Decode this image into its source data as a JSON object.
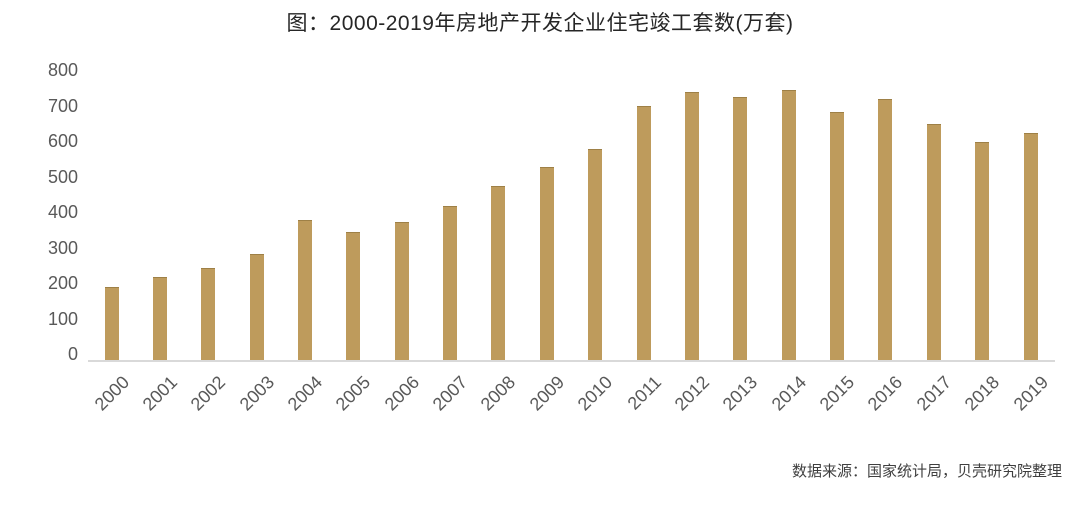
{
  "figure": {
    "title": "图：2000-2019年房地产开发企业住宅竣工套数(万套)",
    "source_note": "数据来源：国家统计局，贝壳研究院整理"
  },
  "colors": {
    "background": "#FFFFFF",
    "bar": "#BE9B5C",
    "axis_line": "#D9D9D9",
    "axis_label": "#595959",
    "title_text": "#262626",
    "source_text": "#3F3F3F"
  },
  "chart_data": {
    "type": "bar",
    "title": "图：2000-2019年房地产开发企业住宅竣工套数(万套)",
    "unit": "万套",
    "categories": [
      "2000",
      "2001",
      "2002",
      "2003",
      "2004",
      "2005",
      "2006",
      "2007",
      "2008",
      "2009",
      "2010",
      "2011",
      "2012",
      "2013",
      "2014",
      "2015",
      "2016",
      "2017",
      "2018",
      "2019"
    ],
    "values": [
      205,
      235,
      260,
      300,
      395,
      360,
      390,
      435,
      490,
      545,
      595,
      715,
      755,
      740,
      760,
      700,
      735,
      665,
      615,
      640
    ],
    "xlabel": "",
    "ylabel": "",
    "ylim": [
      0,
      800
    ],
    "yticks": [
      0,
      100,
      200,
      300,
      400,
      500,
      600,
      700,
      800
    ],
    "grid": false,
    "legend": "none",
    "source": "数据来源：国家统计局，贝壳研究院整理"
  }
}
